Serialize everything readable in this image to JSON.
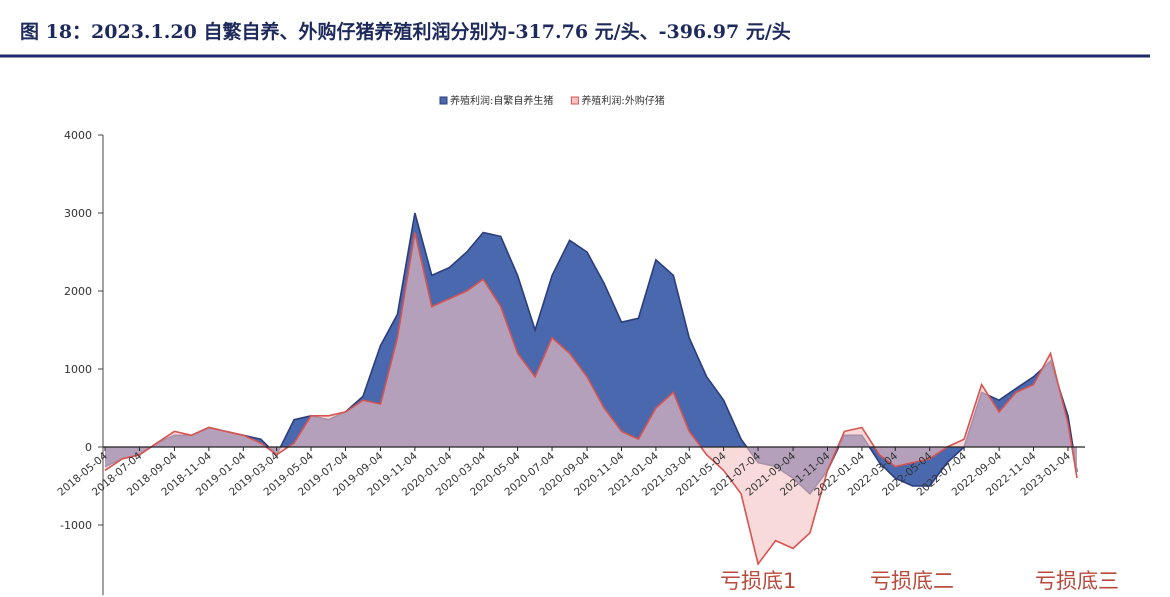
{
  "chart_data": {
    "type": "area",
    "title": "图 18：2023.1.20 自繁自养、外购仔猪养殖利润分别为-317.76 元/头、-396.97 元/头",
    "x": [
      "2018-05-04",
      "2018-06-04",
      "2018-07-04",
      "2018-08-04",
      "2018-09-04",
      "2018-10-04",
      "2018-11-04",
      "2018-12-04",
      "2019-01-04",
      "2019-02-04",
      "2019-03-04",
      "2019-04-04",
      "2019-05-04",
      "2019-06-04",
      "2019-07-04",
      "2019-08-04",
      "2019-09-04",
      "2019-10-04",
      "2019-11-04",
      "2019-12-04",
      "2020-01-04",
      "2020-02-04",
      "2020-03-04",
      "2020-04-04",
      "2020-05-04",
      "2020-06-04",
      "2020-07-04",
      "2020-08-04",
      "2020-09-04",
      "2020-10-04",
      "2020-11-04",
      "2020-12-04",
      "2021-01-04",
      "2021-02-04",
      "2021-03-04",
      "2021-04-04",
      "2021-05-04",
      "2021-06-04",
      "2021-07-04",
      "2021-08-04",
      "2021-09-04",
      "2021-10-04",
      "2021-11-04",
      "2021-12-04",
      "2022-01-04",
      "2022-02-04",
      "2022-03-04",
      "2022-04-04",
      "2022-05-04",
      "2022-06-04",
      "2022-07-04",
      "2022-08-04",
      "2022-09-04",
      "2022-10-04",
      "2022-11-04",
      "2022-12-04",
      "2023-01-04",
      "2023-01-20"
    ],
    "series": [
      {
        "name": "养殖利润:自繁自养生猪",
        "color": "#4a68ad",
        "values": [
          -250,
          -150,
          -100,
          50,
          150,
          150,
          250,
          200,
          150,
          100,
          -100,
          350,
          400,
          350,
          450,
          650,
          1300,
          1700,
          3000,
          2200,
          2300,
          2500,
          2750,
          2700,
          2200,
          1500,
          2200,
          2650,
          2500,
          2100,
          1600,
          1650,
          2400,
          2200,
          1400,
          900,
          600,
          100,
          -200,
          -250,
          -400,
          -600,
          -300,
          150,
          150,
          -200,
          -400,
          -500,
          -500,
          -200,
          0,
          700,
          600,
          750,
          900,
          1100,
          400,
          -317.76
        ]
      },
      {
        "name": "养殖利润:外购仔猪",
        "color": "#d9534f",
        "values": [
          -300,
          -150,
          -100,
          50,
          200,
          150,
          250,
          200,
          150,
          50,
          -100,
          50,
          400,
          400,
          450,
          600,
          550,
          1400,
          2750,
          1800,
          1900,
          2000,
          2150,
          1800,
          1200,
          900,
          1400,
          1200,
          900,
          500,
          200,
          100,
          500,
          700,
          200,
          -100,
          -300,
          -600,
          -1500,
          -1200,
          -1300,
          -1100,
          -300,
          200,
          250,
          -100,
          -250,
          -200,
          -150,
          0,
          100,
          800,
          450,
          700,
          800,
          1200,
          300,
          -396.97
        ]
      }
    ],
    "xlim": [
      "2018-05-04",
      "2023-01-20"
    ],
    "xticks": [
      "2018-05-04",
      "2018-07-04",
      "2018-09-04",
      "2018-11-04",
      "2019-01-04",
      "2019-03-04",
      "2019-05-04",
      "2019-07-04",
      "2019-09-04",
      "2019-11-04",
      "2020-01-04",
      "2020-03-04",
      "2020-05-04",
      "2020-07-04",
      "2020-09-04",
      "2020-11-04",
      "2021-01-04",
      "2021-03-04",
      "2021-05-04",
      "2021-07-04",
      "2021-09-04",
      "2021-11-04",
      "2022-01-04",
      "2022-03-04",
      "2022-05-04",
      "2022-07-04",
      "2022-09-04",
      "2022-11-04",
      "2023-01-04"
    ],
    "ylim": [
      -1900,
      4000
    ],
    "yticks": [
      -1000,
      0,
      1000,
      2000,
      3000,
      4000
    ],
    "annotations": [
      "亏损底1",
      "亏损底二",
      "亏损底三"
    ]
  }
}
